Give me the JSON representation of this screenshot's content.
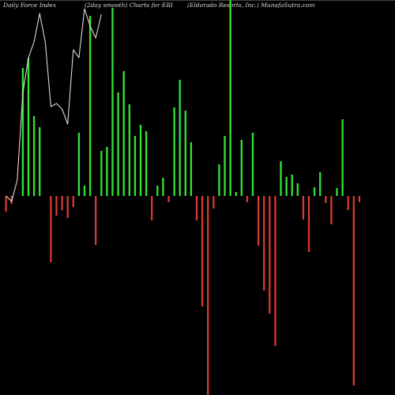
{
  "header": {
    "left": "Daily Force  Index",
    "middle": "(2day smooth) Charts for ERI",
    "right": "(Eldorado  Resorts, Inc.) MunafaSutra.com"
  },
  "colors": {
    "background": "#000000",
    "positive": "#33e533",
    "negative": "#d83a2e",
    "zero_line": "#b0b0b0",
    "line": "#d9d9d9"
  },
  "chart_data": {
    "type": "bar",
    "title": "",
    "grid": false,
    "zero_level": 248,
    "bars": [
      {
        "i": 0,
        "v": -20
      },
      {
        "i": 1,
        "v": -10
      },
      {
        "i": 3,
        "v": 162
      },
      {
        "i": 4,
        "v": 175
      },
      {
        "i": 5,
        "v": 101
      },
      {
        "i": 6,
        "v": 87
      },
      {
        "i": 8,
        "v": -84
      },
      {
        "i": 9,
        "v": -25
      },
      {
        "i": 10,
        "v": -18
      },
      {
        "i": 11,
        "v": -28
      },
      {
        "i": 12,
        "v": -14
      },
      {
        "i": 13,
        "v": 80
      },
      {
        "i": 14,
        "v": 13
      },
      {
        "i": 15,
        "v": 228
      },
      {
        "i": 16,
        "v": -62
      },
      {
        "i": 17,
        "v": 57
      },
      {
        "i": 18,
        "v": 62
      },
      {
        "i": 19,
        "v": 238
      },
      {
        "i": 20,
        "v": 131
      },
      {
        "i": 21,
        "v": 158
      },
      {
        "i": 22,
        "v": 116
      },
      {
        "i": 23,
        "v": 76
      },
      {
        "i": 24,
        "v": 90
      },
      {
        "i": 25,
        "v": 82
      },
      {
        "i": 26,
        "v": -31
      },
      {
        "i": 27,
        "v": 13
      },
      {
        "i": 28,
        "v": 23
      },
      {
        "i": 29,
        "v": -8
      },
      {
        "i": 30,
        "v": 112
      },
      {
        "i": 31,
        "v": 147
      },
      {
        "i": 32,
        "v": 108
      },
      {
        "i": 33,
        "v": 68
      },
      {
        "i": 34,
        "v": -31
      },
      {
        "i": 35,
        "v": -140
      },
      {
        "i": 36,
        "v": -252
      },
      {
        "i": 37,
        "v": -16
      },
      {
        "i": 38,
        "v": 40
      },
      {
        "i": 39,
        "v": 76
      },
      {
        "i": 40,
        "v": 248
      },
      {
        "i": 41,
        "v": 5
      },
      {
        "i": 42,
        "v": 71
      },
      {
        "i": 43,
        "v": -8
      },
      {
        "i": 44,
        "v": 80
      },
      {
        "i": 45,
        "v": -63
      },
      {
        "i": 46,
        "v": -120
      },
      {
        "i": 47,
        "v": -149
      },
      {
        "i": 48,
        "v": -190
      },
      {
        "i": 49,
        "v": 44
      },
      {
        "i": 50,
        "v": 24
      },
      {
        "i": 51,
        "v": 27
      },
      {
        "i": 52,
        "v": 16
      },
      {
        "i": 53,
        "v": -30
      },
      {
        "i": 54,
        "v": -71
      },
      {
        "i": 55,
        "v": 11
      },
      {
        "i": 56,
        "v": 30
      },
      {
        "i": 57,
        "v": -9
      },
      {
        "i": 58,
        "v": -36
      },
      {
        "i": 59,
        "v": 10
      },
      {
        "i": 60,
        "v": 97
      },
      {
        "i": 61,
        "v": -18
      },
      {
        "i": 62,
        "v": -240
      },
      {
        "i": 63,
        "v": -8
      }
    ],
    "line": [
      {
        "i": 0,
        "v": 0
      },
      {
        "i": 1,
        "v": -7
      },
      {
        "i": 2,
        "v": 20
      },
      {
        "i": 3,
        "v": 130
      },
      {
        "i": 4,
        "v": 175
      },
      {
        "i": 5,
        "v": 195
      },
      {
        "i": 6,
        "v": 231
      },
      {
        "i": 7,
        "v": 195
      },
      {
        "i": 8,
        "v": 113
      },
      {
        "i": 9,
        "v": 117
      },
      {
        "i": 10,
        "v": 110
      },
      {
        "i": 11,
        "v": 91
      },
      {
        "i": 12,
        "v": 185
      },
      {
        "i": 13,
        "v": 175
      },
      {
        "i": 14,
        "v": 237
      },
      {
        "i": 15,
        "v": 215
      },
      {
        "i": 16,
        "v": 200
      },
      {
        "i": 17,
        "v": 230
      }
    ]
  }
}
